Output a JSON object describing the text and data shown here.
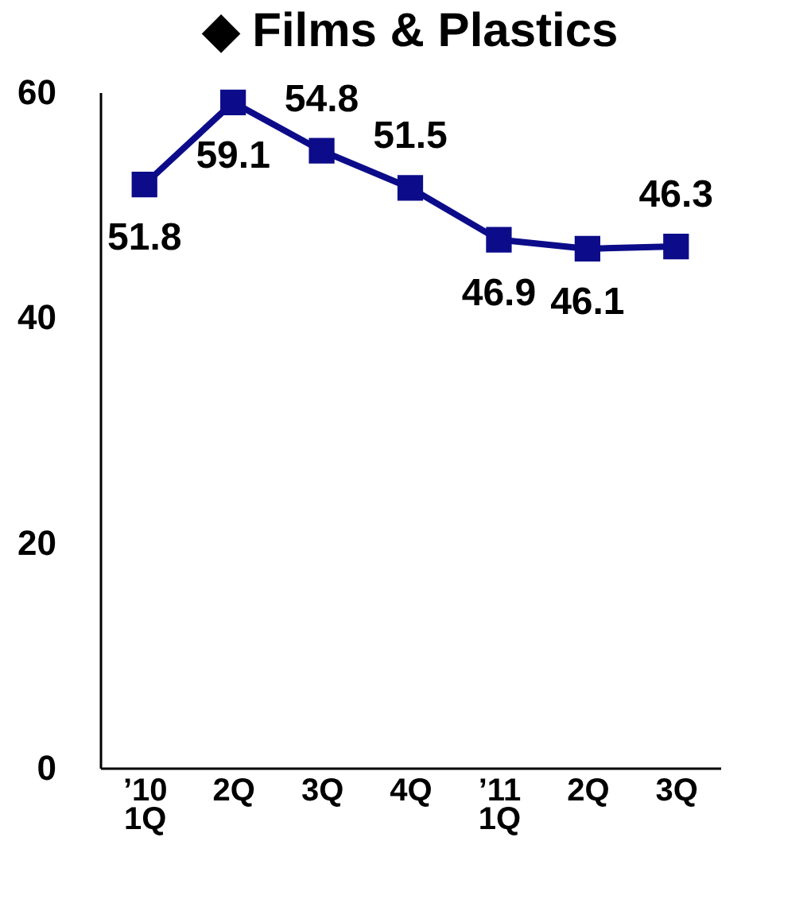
{
  "chart_data": {
    "type": "line",
    "title": "◆ Films & Plastics",
    "categories": [
      "’10\n1Q",
      "2Q",
      "3Q",
      "4Q",
      "’11\n1Q",
      "2Q",
      "3Q"
    ],
    "series": [
      {
        "color": "#0c0c8a",
        "values": [
          51.8,
          59.1,
          54.8,
          51.5,
          46.9,
          46.1,
          46.3
        ]
      }
    ],
    "ylim": [
      0,
      60
    ],
    "yticks": [
      0,
      20,
      40,
      60
    ],
    "grid": false,
    "marker": "square",
    "line_style": "solid",
    "data_labels": true
  }
}
